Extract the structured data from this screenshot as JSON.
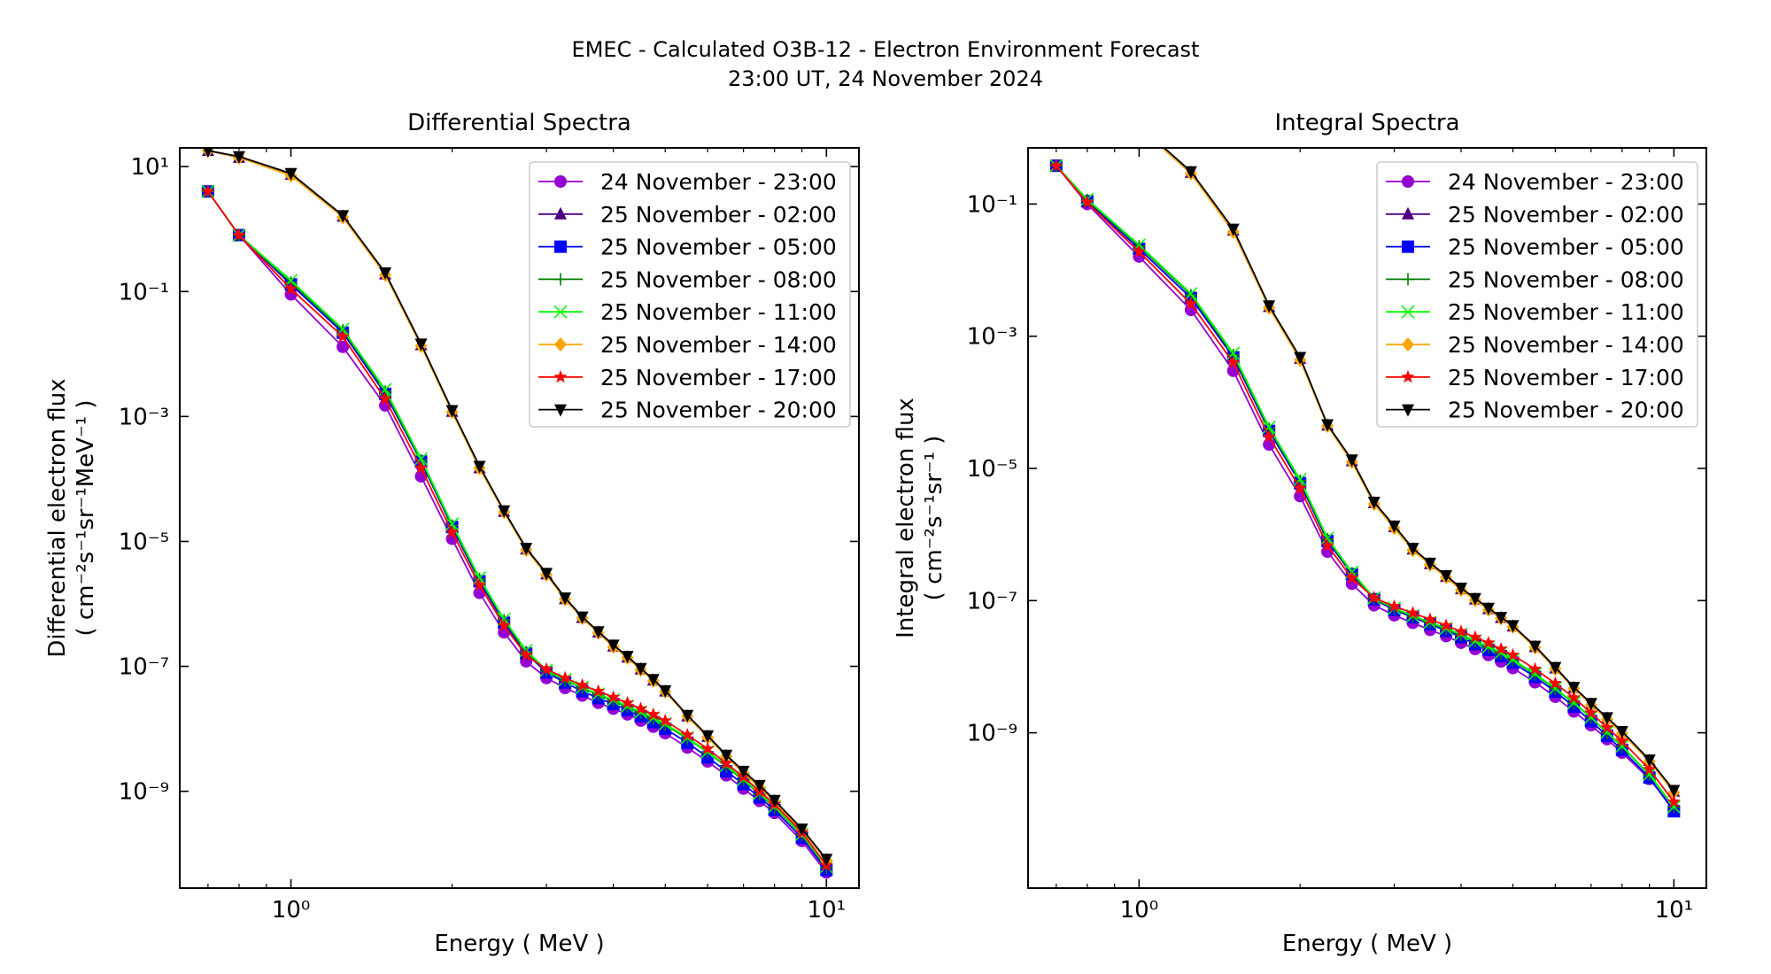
{
  "figure": {
    "title_line1": "EMEC - Calculated O3B-12 - Electron Environment Forecast",
    "title_line2": "23:00 UT, 24 November 2024"
  },
  "chart_data": [
    {
      "type": "line",
      "title": "Differential Spectra",
      "xlabel": "Energy ( MeV )",
      "ylabel_line1": "Differential electron flux",
      "ylabel_line2": "( cm⁻²s⁻¹sr⁻¹MeV⁻¹ )",
      "xscale": "log",
      "yscale": "log",
      "xlim": [
        0.62,
        11.5
      ],
      "ylim_log10": [
        -10.55,
        1.3
      ],
      "xticks": [
        {
          "value": 1,
          "label": "10⁰"
        },
        {
          "value": 10,
          "label": "10¹"
        }
      ],
      "yticks": [
        {
          "value": 10,
          "label": "10¹"
        },
        {
          "value": 0.1,
          "label": "10⁻¹"
        },
        {
          "value": 0.001,
          "label": "10⁻³"
        },
        {
          "value": 1e-05,
          "label": "10⁻⁵"
        },
        {
          "value": 1e-07,
          "label": "10⁻⁷"
        },
        {
          "value": 1e-09,
          "label": "10⁻⁹"
        }
      ],
      "grid": false,
      "legend": "top-right",
      "x": [
        0.7,
        0.8,
        1.0,
        1.25,
        1.5,
        1.75,
        2.0,
        2.25,
        2.5,
        2.75,
        3.0,
        3.25,
        3.5,
        3.75,
        4.0,
        4.25,
        4.5,
        4.75,
        5.0,
        5.5,
        6.0,
        6.5,
        7.0,
        7.5,
        8.0,
        9.0,
        10.0
      ],
      "series": [
        {
          "name": "24 November - 23:00",
          "color": "#9400D3",
          "marker": "circle",
          "values": [
            4.0,
            0.8,
            0.09,
            0.013,
            0.0015,
            0.00011,
            1.1e-05,
            1.5e-06,
            3.5e-07,
            1.2e-07,
            6.5e-08,
            4.5e-08,
            3.4e-08,
            2.6e-08,
            2.1e-08,
            1.7e-08,
            1.35e-08,
            1.08e-08,
            8.5e-09,
            5e-09,
            3e-09,
            1.8e-09,
            1.1e-09,
            7e-10,
            4.5e-10,
            1.6e-10,
            5e-11
          ]
        },
        {
          "name": "25 November - 02:00",
          "color": "#4B0082",
          "marker": "triangle-up",
          "values": [
            18,
            14,
            7.5,
            1.6,
            0.19,
            0.014,
            0.0012,
            0.00015,
            3e-05,
            7.5e-06,
            3e-06,
            1.2e-06,
            6e-07,
            3.5e-07,
            2.1e-07,
            1.4e-07,
            9e-08,
            6e-08,
            4e-08,
            1.6e-08,
            7.5e-09,
            3.7e-09,
            2e-09,
            1.2e-09,
            7e-10,
            2.4e-10,
            8e-11
          ]
        },
        {
          "name": "25 November - 05:00",
          "color": "#0000FF",
          "marker": "square",
          "values": [
            4.0,
            0.8,
            0.13,
            0.022,
            0.0023,
            0.00019,
            1.7e-05,
            2.3e-06,
            5e-07,
            1.6e-07,
            8e-08,
            5.5e-08,
            4e-08,
            3.1e-08,
            2.5e-08,
            2e-08,
            1.6e-08,
            1.28e-08,
            1e-08,
            6e-09,
            3.5e-09,
            2.1e-09,
            1.3e-09,
            8e-10,
            5e-10,
            1.8e-10,
            5.5e-11
          ]
        },
        {
          "name": "25 November - 08:00",
          "color": "#008000",
          "marker": "plus",
          "values": [
            4.0,
            0.8,
            0.14,
            0.024,
            0.0025,
            0.0002,
            1.8e-05,
            2.5e-06,
            5.5e-07,
            1.7e-07,
            8.5e-08,
            6e-08,
            4.5e-08,
            3.5e-08,
            2.8e-08,
            2.25e-08,
            1.8e-08,
            1.45e-08,
            1.15e-08,
            7e-09,
            4.2e-09,
            2.5e-09,
            1.5e-09,
            9e-10,
            5.5e-10,
            2e-10,
            6e-11
          ]
        },
        {
          "name": "25 November - 11:00",
          "color": "#00FF00",
          "marker": "x",
          "values": [
            4.0,
            0.8,
            0.15,
            0.025,
            0.0027,
            0.00021,
            1.9e-05,
            2.6e-06,
            5.7e-07,
            1.8e-07,
            8.7e-08,
            6.1e-08,
            4.6e-08,
            3.6e-08,
            2.9e-08,
            2.3e-08,
            1.85e-08,
            1.5e-08,
            1.2e-08,
            7.2e-09,
            4.3e-09,
            2.6e-09,
            1.55e-09,
            9.3e-10,
            5.7e-10,
            2.05e-10,
            6.2e-11
          ]
        },
        {
          "name": "25 November - 14:00",
          "color": "#FFA500",
          "marker": "diamond",
          "values": [
            18,
            14,
            7.2,
            1.55,
            0.185,
            0.0135,
            0.00118,
            0.000148,
            2.95e-05,
            7.3e-06,
            2.95e-06,
            1.18e-06,
            5.9e-07,
            3.45e-07,
            2.05e-07,
            1.37e-07,
            8.8e-08,
            5.9e-08,
            3.95e-08,
            1.58e-08,
            7.3e-09,
            3.6e-09,
            1.95e-09,
            1.15e-09,
            6.8e-10,
            2.35e-10,
            7.8e-11
          ]
        },
        {
          "name": "25 November - 17:00",
          "color": "#FF0000",
          "marker": "star",
          "values": [
            4.0,
            0.8,
            0.11,
            0.019,
            0.0019,
            0.00015,
            1.4e-05,
            2e-06,
            4.5e-07,
            1.5e-07,
            9e-08,
            6.5e-08,
            5e-08,
            4e-08,
            3.2e-08,
            2.6e-08,
            2.1e-08,
            1.7e-08,
            1.35e-08,
            8e-09,
            4.8e-09,
            2.8e-09,
            1.7e-09,
            1e-09,
            6.2e-10,
            2.2e-10,
            6.5e-11
          ]
        },
        {
          "name": "25 November - 20:00",
          "color": "#000000",
          "marker": "triangle-down",
          "values": [
            18,
            14.5,
            7.8,
            1.65,
            0.2,
            0.0145,
            0.00125,
            0.00016,
            3.1e-05,
            7.8e-06,
            3.1e-06,
            1.25e-06,
            6.2e-07,
            3.6e-07,
            2.2e-07,
            1.45e-07,
            9.3e-08,
            6.2e-08,
            4.1e-08,
            1.65e-08,
            7.8e-09,
            3.8e-09,
            2.1e-09,
            1.25e-09,
            7.2e-10,
            2.5e-10,
            8.2e-11
          ]
        }
      ]
    },
    {
      "type": "line",
      "title": "Integral Spectra",
      "xlabel": "Energy ( MeV )",
      "ylabel_line1": "Integral electron flux",
      "ylabel_line2": "( cm⁻²s⁻¹sr⁻¹ )",
      "xscale": "log",
      "yscale": "log",
      "xlim": [
        0.62,
        11.5
      ],
      "ylim_log10": [
        -11.35,
        -0.15
      ],
      "xticks": [
        {
          "value": 1,
          "label": "10⁰"
        },
        {
          "value": 10,
          "label": "10¹"
        }
      ],
      "yticks": [
        {
          "value": 0.1,
          "label": "10⁻¹"
        },
        {
          "value": 0.001,
          "label": "10⁻³"
        },
        {
          "value": 1e-05,
          "label": "10⁻⁵"
        },
        {
          "value": 1e-07,
          "label": "10⁻⁷"
        },
        {
          "value": 1e-09,
          "label": "10⁻⁹"
        }
      ],
      "grid": false,
      "legend": "top-right",
      "x": [
        0.7,
        0.8,
        1.0,
        1.25,
        1.5,
        1.75,
        2.0,
        2.25,
        2.5,
        2.75,
        3.0,
        3.25,
        3.5,
        3.75,
        4.0,
        4.25,
        4.5,
        4.75,
        5.0,
        5.5,
        6.0,
        6.5,
        7.0,
        7.5,
        8.0,
        9.0,
        10.0
      ],
      "series": [
        {
          "name": "24 November - 23:00",
          "color": "#9400D3",
          "marker": "circle",
          "values": [
            0.38,
            0.1,
            0.016,
            0.0025,
            0.0003,
            2.3e-05,
            3.8e-06,
            5.5e-07,
            1.8e-07,
            8.5e-08,
            6e-08,
            4.6e-08,
            3.6e-08,
            2.9e-08,
            2.3e-08,
            1.85e-08,
            1.5e-08,
            1.2e-08,
            9.5e-09,
            5.8e-09,
            3.5e-09,
            2.1e-09,
            1.3e-09,
            8e-10,
            5e-10,
            2e-10,
            7e-11
          ]
        },
        {
          "name": "25 November - 02:00",
          "color": "#4B0082",
          "marker": "triangle-up",
          "values": [
            3.5,
            2.8,
            1.5,
            0.3,
            0.04,
            0.0028,
            0.00046,
            4.5e-05,
            1.3e-05,
            3e-06,
            1.3e-06,
            6e-07,
            3.6e-07,
            2.3e-07,
            1.5e-07,
            1.05e-07,
            7.5e-08,
            5.5e-08,
            4.1e-08,
            2e-08,
            9.5e-09,
            4.8e-09,
            2.7e-09,
            1.65e-09,
            1e-09,
            3.8e-10,
            1.3e-10
          ]
        },
        {
          "name": "25 November - 05:00",
          "color": "#0000FF",
          "marker": "square",
          "values": [
            0.38,
            0.11,
            0.021,
            0.0038,
            0.00048,
            3.7e-05,
            6e-06,
            8e-07,
            2.5e-07,
            1.05e-07,
            7.2e-08,
            5.6e-08,
            4.4e-08,
            3.5e-08,
            2.8e-08,
            2.2e-08,
            1.8e-08,
            1.45e-08,
            1.15e-08,
            7e-09,
            4.2e-09,
            2.5e-09,
            1.5e-09,
            9e-10,
            5.5e-10,
            2.1e-10,
            6.5e-11
          ]
        },
        {
          "name": "25 November - 08:00",
          "color": "#008000",
          "marker": "plus",
          "values": [
            0.38,
            0.115,
            0.023,
            0.0042,
            0.00052,
            4e-05,
            6.5e-06,
            8.5e-07,
            2.6e-07,
            1.08e-07,
            7.5e-08,
            5.8e-08,
            4.6e-08,
            3.7e-08,
            3e-08,
            2.4e-08,
            1.95e-08,
            1.6e-08,
            1.25e-08,
            7.6e-09,
            4.6e-09,
            2.8e-09,
            1.7e-09,
            1e-09,
            6.2e-10,
            2.3e-10,
            7.5e-11
          ]
        },
        {
          "name": "25 November - 11:00",
          "color": "#00FF00",
          "marker": "x",
          "values": [
            0.38,
            0.118,
            0.024,
            0.0044,
            0.00055,
            4.2e-05,
            6.8e-06,
            8.8e-07,
            2.7e-07,
            1.1e-07,
            7.7e-08,
            5.9e-08,
            4.7e-08,
            3.8e-08,
            3.1e-08,
            2.45e-08,
            2e-08,
            1.63e-08,
            1.28e-08,
            7.8e-09,
            4.7e-09,
            2.85e-09,
            1.72e-09,
            1.02e-09,
            6.3e-10,
            2.35e-10,
            7.6e-11
          ]
        },
        {
          "name": "25 November - 14:00",
          "color": "#FFA500",
          "marker": "diamond",
          "values": [
            3.4,
            2.7,
            1.45,
            0.29,
            0.038,
            0.0027,
            0.00044,
            4.4e-05,
            1.25e-05,
            2.9e-06,
            1.25e-06,
            5.8e-07,
            3.5e-07,
            2.25e-07,
            1.45e-07,
            1.02e-07,
            7.3e-08,
            5.4e-08,
            4e-08,
            1.95e-08,
            9.3e-09,
            4.7e-09,
            2.65e-09,
            1.6e-09,
            9.8e-10,
            3.7e-10,
            1.25e-10
          ]
        },
        {
          "name": "25 November - 17:00",
          "color": "#FF0000",
          "marker": "star",
          "values": [
            0.38,
            0.105,
            0.019,
            0.0031,
            0.0004,
            3e-05,
            5e-06,
            6.8e-07,
            2.2e-07,
            1.1e-07,
            8.2e-08,
            6.5e-08,
            5.2e-08,
            4.2e-08,
            3.4e-08,
            2.8e-08,
            2.3e-08,
            1.85e-08,
            1.5e-08,
            9.2e-09,
            5.6e-09,
            3.4e-09,
            2e-09,
            1.2e-09,
            7.5e-10,
            2.8e-10,
            9e-11
          ]
        },
        {
          "name": "25 November - 20:00",
          "color": "#000000",
          "marker": "triangle-down",
          "values": [
            3.6,
            2.9,
            1.55,
            0.31,
            0.042,
            0.0029,
            0.00048,
            4.6e-05,
            1.35e-05,
            3.1e-06,
            1.35e-06,
            6.2e-07,
            3.7e-07,
            2.4e-07,
            1.55e-07,
            1.08e-07,
            7.7e-08,
            5.6e-08,
            4.2e-08,
            2.05e-08,
            9.8e-09,
            4.9e-09,
            2.8e-09,
            1.7e-09,
            1.05e-09,
            3.9e-10,
            1.35e-10
          ]
        }
      ]
    }
  ]
}
